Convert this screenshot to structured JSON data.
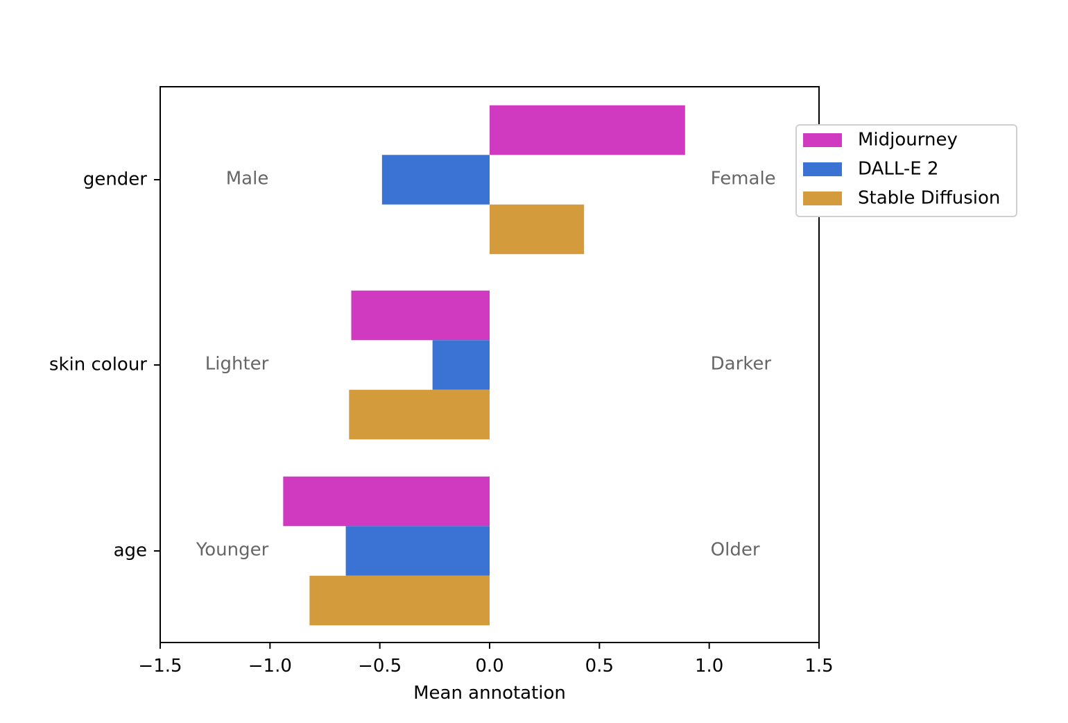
{
  "chart_data": {
    "type": "bar",
    "orientation": "horizontal",
    "title": "",
    "xlabel": "Mean annotation",
    "ylabel": "",
    "xlim": [
      -1.5,
      1.5
    ],
    "xticks": [
      -1.5,
      -1.0,
      -0.5,
      0.0,
      0.5,
      1.0,
      1.5
    ],
    "xtick_labels": [
      "−1.5",
      "−1.0",
      "−0.5",
      "0.0",
      "0.5",
      "1.0",
      "1.5"
    ],
    "categories": [
      "gender",
      "skin colour",
      "age"
    ],
    "series": [
      {
        "name": "Midjourney",
        "color": "#d03ac0",
        "values": [
          0.89,
          -0.63,
          -0.94
        ]
      },
      {
        "name": "DALL-E 2",
        "color": "#3b73d4",
        "values": [
          -0.49,
          -0.26,
          -0.655
        ]
      },
      {
        "name": "Stable Diffusion",
        "color": "#d39b3b",
        "values": [
          0.43,
          -0.64,
          -0.82
        ]
      }
    ],
    "annotations": [
      {
        "category": "gender",
        "left": "Male",
        "right": "Female"
      },
      {
        "category": "skin colour",
        "left": "Lighter",
        "right": "Darker"
      },
      {
        "category": "age",
        "left": "Younger",
        "right": "Older"
      }
    ],
    "legend_position": "upper-right-outside",
    "grid": false
  }
}
